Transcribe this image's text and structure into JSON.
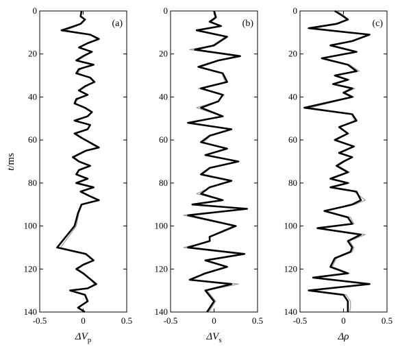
{
  "figure": {
    "ylabel_main": "t",
    "ylabel_unit": "/ms"
  },
  "chart_data": [
    {
      "type": "line",
      "panel_label": "(a)",
      "xlabel_main": "ΔV",
      "xlabel_sub": "p",
      "xlim": [
        -0.5,
        0.5
      ],
      "ylim": [
        0,
        140
      ],
      "y_inverted": true,
      "xticks": [
        "-0.5",
        "0",
        "0.5"
      ],
      "yticks": [
        "0",
        "20",
        "40",
        "60",
        "80",
        "100",
        "120",
        "140"
      ],
      "grid": false,
      "series": [
        {
          "color": "#000000",
          "x": [
            -0.02,
            -0.03,
            0.02,
            -0.03,
            -0.1,
            -0.25,
            0.08,
            0.18,
            0.05,
            -0.05,
            0.1,
            0.0,
            -0.08,
            0.12,
            -0.05,
            -0.08,
            0.08,
            0.13,
            0.02,
            -0.05,
            0.05,
            -0.08,
            -0.1,
            0.02,
            0.1,
            0.05,
            -0.1,
            0.08,
            0.05,
            -0.1,
            -0.02,
            0.07,
            0.18,
            0.03,
            -0.12,
            -0.05,
            0.08,
            -0.05,
            -0.08,
            0.05,
            -0.08,
            0.12,
            -0.03,
            0.07,
            0.18,
            -0.02,
            -0.06,
            -0.1,
            -0.3,
            0.03,
            0.12,
            0.0,
            -0.08,
            0.0,
            0.15,
            0.05,
            -0.15,
            0.02,
            0.05,
            -0.06,
            0.02
          ],
          "y": [
            0,
            2.5,
            4,
            6,
            7,
            9,
            11,
            13,
            15,
            17,
            19,
            21,
            23,
            25,
            27,
            29,
            31,
            33,
            35,
            37,
            39,
            41,
            43,
            45,
            47,
            49,
            51,
            53,
            55,
            57,
            59,
            61,
            63.5,
            65,
            68,
            70,
            72,
            74,
            76,
            78,
            80,
            82,
            84,
            86,
            88,
            90,
            94,
            100,
            110,
            113,
            116,
            118,
            120,
            122,
            127,
            129,
            130,
            132,
            135,
            138,
            140
          ]
        },
        {
          "color": "#999999",
          "x": [
            -0.01,
            -0.03,
            0.03,
            -0.02,
            -0.08,
            -0.2,
            0.07,
            0.16,
            0.06,
            -0.04,
            0.09,
            0.02,
            -0.06,
            0.11,
            -0.03,
            -0.06,
            0.07,
            0.12,
            0.04,
            -0.04,
            0.04,
            -0.06,
            -0.09,
            0.03,
            0.09,
            0.06,
            -0.08,
            0.07,
            0.06,
            -0.08,
            -0.01,
            0.06,
            0.16,
            0.04,
            -0.1,
            -0.04,
            0.07,
            -0.04,
            -0.07,
            0.04,
            -0.06,
            0.11,
            -0.02,
            0.06,
            0.16,
            -0.01,
            -0.05,
            -0.08,
            -0.26,
            0.02,
            0.11,
            0.01,
            -0.06,
            0.01,
            0.13,
            0.06,
            -0.13,
            0.03,
            0.06,
            -0.05,
            0.03
          ],
          "y": [
            0,
            2.5,
            4,
            6,
            7,
            9,
            11,
            13,
            15,
            17,
            19,
            21,
            23,
            25,
            27,
            29,
            31,
            33,
            35,
            37,
            39,
            41,
            43,
            45,
            47,
            49,
            51,
            53,
            55,
            57,
            59,
            61,
            63.5,
            65,
            68,
            70,
            72,
            74,
            76,
            78,
            80,
            82,
            84,
            86,
            88,
            90,
            94,
            100,
            110,
            113,
            116,
            118,
            120,
            122,
            127,
            129,
            130,
            132,
            135,
            138,
            140
          ]
        }
      ]
    },
    {
      "type": "line",
      "panel_label": "(b)",
      "xlabel_main": "ΔV",
      "xlabel_sub": "s",
      "xlim": [
        -0.5,
        0.5
      ],
      "ylim": [
        0,
        140
      ],
      "y_inverted": true,
      "xticks": [
        "-0.5",
        "0",
        "0.5"
      ],
      "yticks": [
        "0",
        "20",
        "40",
        "60",
        "80",
        "100",
        "120",
        "140"
      ],
      "grid": false,
      "series": [
        {
          "color": "#000000",
          "x": [
            0.0,
            0.02,
            -0.05,
            0.08,
            -0.2,
            0.15,
            0.0,
            -0.22,
            0.3,
            0.05,
            -0.18,
            0.1,
            0.15,
            -0.15,
            0.1,
            0.05,
            -0.15,
            0.1,
            -0.3,
            0.2,
            -0.05,
            -0.15,
            0.15,
            -0.1,
            0.28,
            -0.05,
            -0.15,
            0.2,
            -0.05,
            -0.15,
            0.1,
            -0.25,
            0.38,
            -0.3,
            0.25,
            -0.05,
            -0.05,
            -0.3,
            0.35,
            -0.1,
            0.15,
            -0.1,
            -0.28,
            0.2,
            -0.1,
            0.0,
            -0.08
          ],
          "y": [
            0,
            3,
            5,
            7,
            9,
            12,
            16,
            18,
            21,
            23,
            26,
            29,
            33,
            36,
            39,
            42,
            45,
            49,
            52,
            55,
            58,
            61,
            64,
            67,
            70,
            73,
            76,
            79,
            82,
            85,
            88,
            90,
            92,
            95,
            100,
            105,
            107,
            110,
            113,
            116,
            119,
            122,
            125,
            127,
            130,
            135,
            140
          ]
        },
        {
          "color": "#999999",
          "x": [
            0.01,
            0.03,
            -0.03,
            0.07,
            -0.17,
            0.13,
            -0.02,
            -0.28,
            0.25,
            0.07,
            -0.15,
            0.09,
            0.13,
            -0.18,
            0.12,
            0.04,
            -0.2,
            0.09,
            -0.25,
            0.18,
            -0.04,
            -0.12,
            0.13,
            -0.08,
            0.25,
            -0.04,
            -0.13,
            0.18,
            -0.04,
            -0.2,
            0.09,
            -0.22,
            0.33,
            -0.35,
            0.22,
            -0.06,
            -0.04,
            -0.35,
            0.3,
            -0.08,
            0.13,
            -0.12,
            -0.25,
            0.28,
            -0.08,
            0.02,
            -0.06
          ],
          "y": [
            0,
            3,
            5,
            7,
            9,
            12,
            16,
            18,
            21,
            23,
            26,
            29,
            33,
            36,
            39,
            42,
            45,
            49,
            52,
            55,
            58,
            61,
            64,
            67,
            70,
            73,
            76,
            79,
            82,
            85,
            88,
            90,
            92,
            95,
            100,
            105,
            107,
            110,
            113,
            116,
            119,
            122,
            125,
            127,
            130,
            135,
            140
          ]
        }
      ]
    },
    {
      "type": "line",
      "panel_label": "(c)",
      "xlabel_main": "Δρ",
      "xlabel_sub": "",
      "xlim": [
        -0.5,
        0.5
      ],
      "ylim": [
        0,
        140
      ],
      "y_inverted": true,
      "xticks": [
        "-0.5",
        "0",
        "0.5"
      ],
      "yticks": [
        "0",
        "20",
        "40",
        "60",
        "80",
        "100",
        "120",
        "140"
      ],
      "grid": false,
      "series": [
        {
          "color": "#000000",
          "x": [
            -0.1,
            -0.02,
            0.05,
            -0.08,
            -0.4,
            0.3,
            0.1,
            -0.15,
            0.15,
            -0.25,
            0.05,
            0.15,
            -0.1,
            0.05,
            -0.12,
            0.1,
            0.0,
            0.1,
            -0.45,
            0.1,
            0.15,
            -0.05,
            0.05,
            -0.1,
            0.12,
            -0.05,
            0.1,
            0.0,
            -0.08,
            0.05,
            -0.15,
            0.05,
            -0.15,
            0.15,
            0.2,
            0.1,
            0.0,
            -0.22,
            0.05,
            0.1,
            -0.3,
            0.2,
            0.05,
            0.1,
            0.08,
            -0.1,
            -0.15,
            0.05,
            -0.35,
            0.3,
            -0.4,
            0.0,
            0.05,
            0.05,
            0.05
          ],
          "y": [
            0,
            2,
            4,
            6,
            8,
            11,
            14,
            16,
            19,
            22,
            25,
            28,
            30,
            32,
            34,
            36,
            38,
            40,
            45,
            48,
            51,
            54,
            57,
            60,
            63,
            66,
            68,
            70,
            72,
            75,
            78,
            80,
            82,
            84,
            88,
            90,
            91,
            93,
            96,
            99,
            101,
            104,
            107,
            110,
            112,
            115,
            119,
            122,
            124,
            127,
            130,
            132,
            135,
            138,
            140
          ]
        },
        {
          "color": "#999999",
          "x": [
            -0.08,
            0.0,
            0.06,
            -0.06,
            -0.33,
            0.28,
            0.12,
            -0.13,
            0.16,
            -0.22,
            0.07,
            0.18,
            -0.08,
            0.07,
            -0.1,
            0.13,
            0.02,
            0.12,
            -0.38,
            0.09,
            0.13,
            -0.04,
            0.06,
            -0.08,
            0.1,
            -0.04,
            0.09,
            0.02,
            -0.06,
            0.07,
            -0.13,
            0.07,
            -0.12,
            0.12,
            0.25,
            0.13,
            0.02,
            -0.2,
            0.08,
            0.12,
            -0.27,
            0.25,
            0.07,
            0.12,
            0.1,
            -0.08,
            -0.13,
            0.07,
            -0.3,
            0.25,
            -0.35,
            0.03,
            0.08,
            0.08,
            0.07
          ],
          "y": [
            0,
            2,
            4,
            6,
            8,
            11,
            14,
            16,
            19,
            22,
            25,
            28,
            30,
            32,
            34,
            36,
            38,
            40,
            45,
            48,
            51,
            54,
            57,
            60,
            63,
            66,
            68,
            70,
            72,
            75,
            78,
            80,
            82,
            84,
            88,
            90,
            91,
            93,
            96,
            99,
            101,
            104,
            107,
            110,
            112,
            115,
            119,
            122,
            124,
            127,
            130,
            132,
            135,
            138,
            140
          ]
        }
      ]
    }
  ]
}
